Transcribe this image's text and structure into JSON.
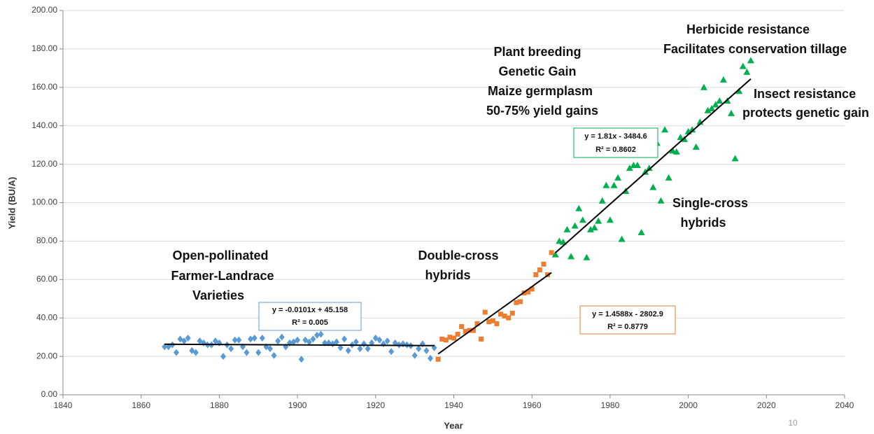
{
  "chart_data": {
    "type": "scatter",
    "x_label": "Year",
    "y_label": "Yield (BU/A)",
    "xlim": [
      1840,
      2040
    ],
    "ylim": [
      0,
      200
    ],
    "xticks": [
      1840,
      1860,
      1880,
      1900,
      1920,
      1940,
      1960,
      1980,
      2000,
      2020,
      2040
    ],
    "yticks": [
      {
        "value": 0,
        "label": "0.00"
      },
      {
        "value": 20,
        "label": "20.00"
      },
      {
        "value": 40,
        "label": "40.00"
      },
      {
        "value": 60,
        "label": "60.00"
      },
      {
        "value": 80,
        "label": "80.00"
      },
      {
        "value": 100,
        "label": "100.00"
      },
      {
        "value": 120,
        "label": "120.00"
      },
      {
        "value": 140,
        "label": "140.00"
      },
      {
        "value": 160,
        "label": "160.00"
      },
      {
        "value": 180,
        "label": "180.00"
      },
      {
        "value": 200,
        "label": "200.00"
      }
    ],
    "grid": true,
    "series": [
      {
        "color": "#5b9bd5",
        "marker": "diamond",
        "x": [
          1866,
          1867,
          1868,
          1869,
          1870,
          1871,
          1872,
          1873,
          1874,
          1875,
          1876,
          1877,
          1878,
          1879,
          1880,
          1881,
          1882,
          1883,
          1884,
          1885,
          1886,
          1887,
          1888,
          1889,
          1890,
          1891,
          1892,
          1893,
          1894,
          1895,
          1896,
          1897,
          1898,
          1899,
          1900,
          1901,
          1902,
          1903,
          1904,
          1905,
          1906,
          1907,
          1908,
          1909,
          1910,
          1911,
          1912,
          1913,
          1914,
          1915,
          1916,
          1917,
          1918,
          1919,
          1920,
          1921,
          1922,
          1923,
          1924,
          1925,
          1926,
          1927,
          1928,
          1929,
          1930,
          1931,
          1932,
          1933,
          1934,
          1935
        ],
        "values": [
          25,
          25,
          26,
          22,
          29,
          28,
          29.5,
          23,
          22,
          28,
          27,
          26,
          26,
          28,
          27,
          20,
          26,
          24,
          28.5,
          28.5,
          25,
          22,
          29,
          29.5,
          22,
          29.5,
          25,
          24,
          20.5,
          28,
          30,
          25,
          27,
          27.5,
          28.5,
          18.5,
          28.5,
          27.5,
          29,
          31,
          31.5,
          27,
          27,
          26.5,
          27.5,
          24.5,
          29,
          23,
          26,
          27.5,
          24,
          26.5,
          24,
          27,
          29.5,
          28.5,
          26.5,
          28,
          22.5,
          27,
          26,
          26.5,
          26,
          25.5,
          20.5,
          24,
          26.5,
          23,
          19,
          24.5
        ]
      },
      {
        "color": "#ed7d31",
        "marker": "square",
        "x": [
          1936,
          1937,
          1938,
          1939,
          1940,
          1941,
          1942,
          1943,
          1944,
          1945,
          1946,
          1947,
          1948,
          1949,
          1950,
          1951,
          1952,
          1953,
          1954,
          1955,
          1956,
          1957,
          1958,
          1959,
          1960,
          1961,
          1962,
          1963,
          1964,
          1965
        ],
        "values": [
          18.5,
          29,
          28.5,
          30,
          29.5,
          31.5,
          35.5,
          33,
          33.5,
          33.5,
          37,
          29,
          43,
          38,
          38.5,
          37,
          42,
          41,
          40,
          42.5,
          48,
          48.5,
          53,
          53.5,
          55,
          62.5,
          65,
          68,
          62.5,
          74
        ]
      },
      {
        "color": "#00b050",
        "marker": "triangle",
        "x": [
          1966,
          1967,
          1968,
          1969,
          1970,
          1971,
          1972,
          1973,
          1974,
          1975,
          1976,
          1977,
          1978,
          1979,
          1980,
          1981,
          1982,
          1983,
          1984,
          1985,
          1986,
          1987,
          1988,
          1989,
          1990,
          1991,
          1992,
          1993,
          1994,
          1995,
          1996,
          1997,
          1998,
          1999,
          2000,
          2001,
          2002,
          2003,
          2004,
          2005,
          2006,
          2007,
          2008,
          2009,
          2010,
          2011,
          2012,
          2013,
          2014,
          2015,
          2016
        ],
        "values": [
          73,
          80,
          79.5,
          86,
          72,
          88,
          97,
          91,
          71.5,
          86,
          87,
          90.5,
          101,
          109,
          91,
          109,
          113,
          81,
          106,
          118,
          119.5,
          119.5,
          84.5,
          116,
          118,
          108,
          131,
          101,
          138,
          113,
          127,
          126.5,
          134,
          133,
          137,
          138,
          129,
          142,
          160,
          148,
          149,
          151,
          153,
          164,
          153,
          146.5,
          123,
          158,
          171,
          168,
          174
        ]
      }
    ],
    "trendlines": [
      {
        "x": [
          1866,
          1935
        ],
        "y": [
          26.3,
          25.6
        ],
        "equation": "y = -0.0101x + 45.158",
        "r2": "R² = 0.005"
      },
      {
        "x": [
          1936,
          1965
        ],
        "y": [
          21.3,
          63.6
        ],
        "equation": "y = 1.4588x - 2802.9",
        "r2": "R² = 0.8779"
      },
      {
        "x": [
          1966,
          2016
        ],
        "y": [
          73.9,
          164.4
        ],
        "equation": "y = 1.81x - 3484.6",
        "r2": "R² = 0.8602"
      }
    ],
    "annotations": [
      "Open-pollinated",
      "Farmer-Landrace",
      "Varieties",
      "Double-cross",
      "hybrids",
      "Plant breeding",
      "Genetic Gain",
      "Maize germplasm",
      "50-75% yield gains",
      "Herbicide resistance",
      "Facilitates conservation tillage",
      "Insect resistance",
      "protects genetic gain",
      "Single-cross",
      "hybrids"
    ],
    "page_number": "10"
  }
}
